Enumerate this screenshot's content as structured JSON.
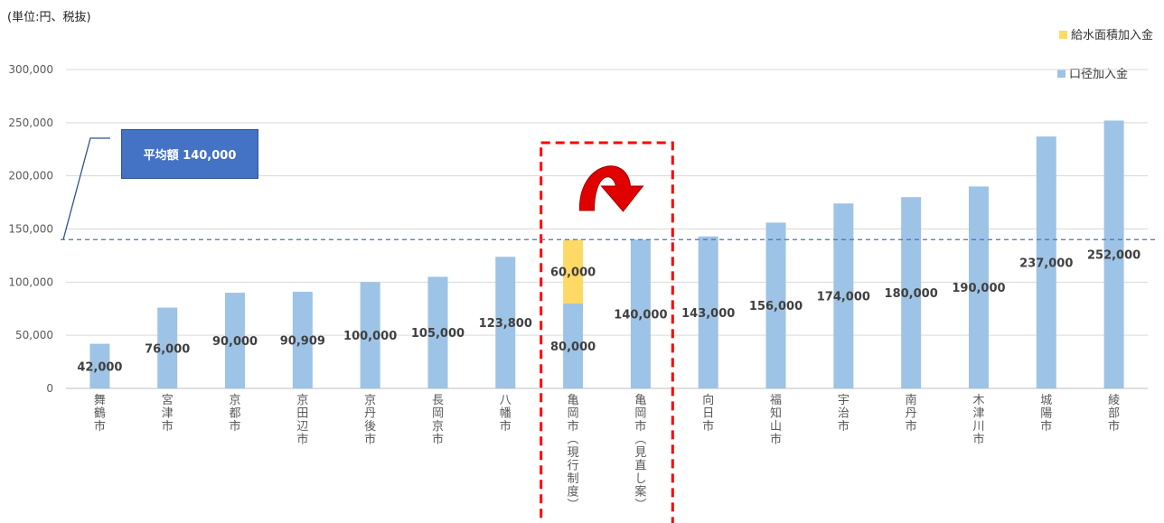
{
  "unit_note": "(単位:円、税抜)",
  "legend": [
    {
      "label": "給水面積加入金",
      "color": "#ffd966"
    },
    {
      "label": "口径加入金",
      "color": "#9dc3e6"
    }
  ],
  "average_label": "平均額 140,000",
  "chart_data": {
    "type": "bar",
    "stacked": true,
    "categories": [
      "舞鶴市",
      "宮津市",
      "京都市",
      "京田辺市",
      "京丹後市",
      "長岡京市",
      "八幡市",
      "亀岡市(現行制度)",
      "亀岡市(見直し案)",
      "向日市",
      "福知山市",
      "宇治市",
      "南丹市",
      "木津川市",
      "城陽市",
      "綾部市"
    ],
    "series": [
      {
        "name": "口径加入金",
        "color": "#9dc3e6",
        "values": [
          42000,
          76000,
          90000,
          90909,
          100000,
          105000,
          123800,
          80000,
          140000,
          143000,
          156000,
          174000,
          180000,
          190000,
          237000,
          252000
        ],
        "labels": [
          "42,000",
          "76,000",
          "90,000",
          "90,909",
          "100,000",
          "105,000",
          "123,800",
          "80,000",
          "140,000",
          "143,000",
          "156,000",
          "174,000",
          "180,000",
          "190,000",
          "237,000",
          "252,000"
        ]
      },
      {
        "name": "給水面積加入金",
        "color": "#ffd966",
        "values": [
          0,
          0,
          0,
          0,
          0,
          0,
          0,
          60000,
          0,
          0,
          0,
          0,
          0,
          0,
          0,
          0
        ],
        "labels": [
          "",
          "",
          "",
          "",
          "",
          "",
          "",
          "60,000",
          "",
          "",
          "",
          "",
          "",
          "",
          "",
          ""
        ]
      }
    ],
    "ylim": [
      0,
      300000
    ],
    "yticks": [
      "0",
      "50,000",
      "100,000",
      "150,000",
      "200,000",
      "250,000",
      "300,000"
    ],
    "average_line": 140000,
    "grid": true,
    "legend_position": "top-right",
    "highlight_categories": [
      "亀岡市(現行制度)",
      "亀岡市(見直し案)"
    ]
  }
}
